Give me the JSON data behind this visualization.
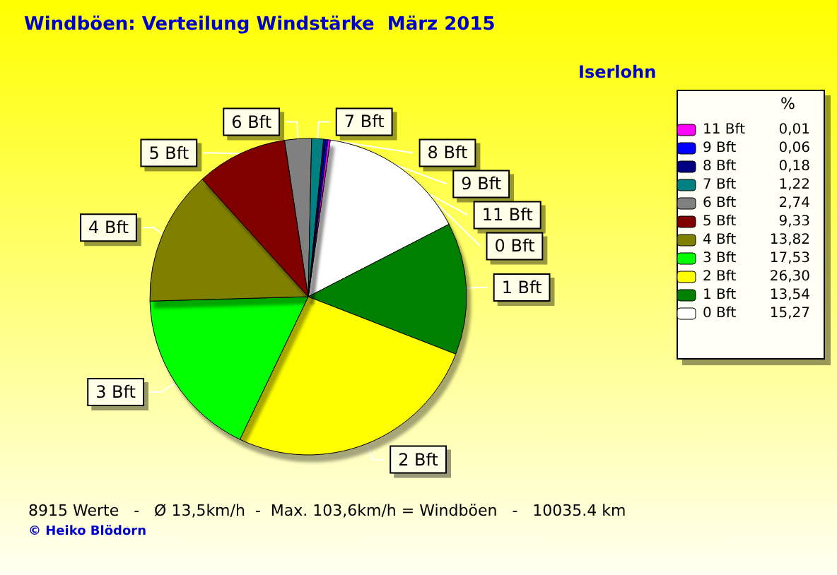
{
  "chart_data": {
    "type": "pie",
    "title": "Windböen: Verteilung Windstärke  März 2015",
    "subtitle": "Iserlohn",
    "legend_title": "%",
    "categories": [
      "0 Bft",
      "1 Bft",
      "2 Bft",
      "3 Bft",
      "4 Bft",
      "5 Bft",
      "6 Bft",
      "7 Bft",
      "8 Bft",
      "9 Bft",
      "11 Bft"
    ],
    "values": [
      15.27,
      13.54,
      26.3,
      17.53,
      13.82,
      9.33,
      2.74,
      1.22,
      0.18,
      0.06,
      0.01
    ],
    "value_labels": [
      "15,27",
      "13,54",
      "26,30",
      "17,53",
      "13,82",
      "9,33",
      "2,74",
      "1,22",
      "0,18",
      "0,06",
      "0,01"
    ],
    "colors": [
      "#ffffff",
      "#008000",
      "#ffff00",
      "#00ff00",
      "#808000",
      "#800000",
      "#808080",
      "#008080",
      "#000080",
      "#0000ff",
      "#ff00ff"
    ],
    "legend": "top right",
    "annotations": [
      "8915 Werte   -   Ø 13,5km/h  -  Max. 103,6km/h = Windböen   -   10035.4 km",
      "© Heiko Blödorn"
    ]
  }
}
